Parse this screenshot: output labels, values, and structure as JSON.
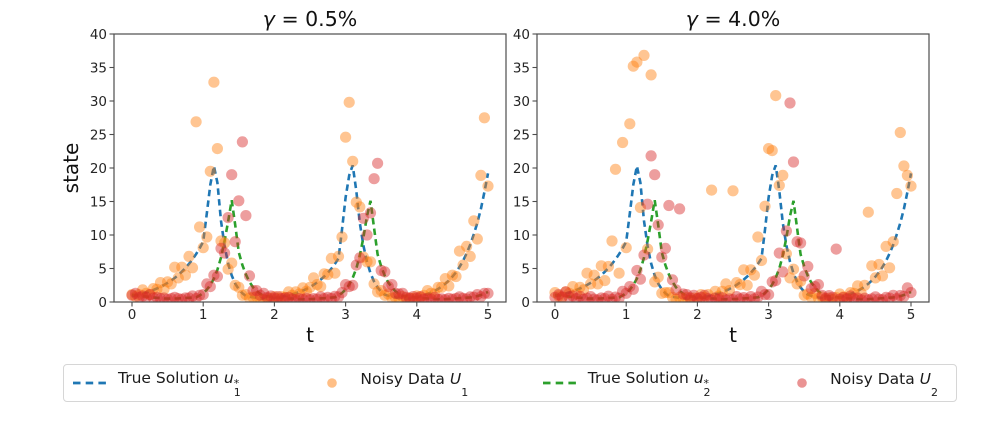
{
  "figure": {
    "background": "#ffffff",
    "spine_color": "#4d4d4d",
    "tick_label_color": "#262626",
    "text_color": "#111111"
  },
  "colors": {
    "u1_line": "#1f77b4",
    "u2_line": "#2ca02c",
    "U1_dot": "#ff7f0e",
    "U2_dot": "#d62728"
  },
  "dot_opacity": 0.45,
  "panels": [
    {
      "title_symbol": "γ",
      "title_rest": " = 0.5%",
      "xlabel": "t",
      "ylabel": "state",
      "x_ticks": [
        "0",
        "1",
        "2",
        "3",
        "4",
        "5"
      ],
      "y_ticks": [
        "0",
        "5",
        "10",
        "15",
        "20",
        "25",
        "30",
        "35",
        "40"
      ]
    },
    {
      "title_symbol": "γ",
      "title_rest": " = 4.0%",
      "xlabel": "t",
      "ylabel": "",
      "x_ticks": [
        "0",
        "1",
        "2",
        "3",
        "4",
        "5"
      ],
      "y_ticks": [
        "0",
        "5",
        "10",
        "15",
        "20",
        "25",
        "30",
        "35",
        "40"
      ]
    }
  ],
  "legend": {
    "items": [
      {
        "type": "dash",
        "color": "#1f77b4",
        "prefix": "True Solution ",
        "var": "u",
        "sub": "1",
        "sup": "*"
      },
      {
        "type": "dot",
        "color": "#ff7f0e",
        "prefix": "Noisy Data ",
        "var": "U",
        "sub": "1",
        "sup": ""
      },
      {
        "type": "dash",
        "color": "#2ca02c",
        "prefix": "True Solution ",
        "var": "u",
        "sub": "2",
        "sup": "*"
      },
      {
        "type": "dot",
        "color": "#d62728",
        "prefix": "Noisy Data ",
        "var": "U",
        "sub": "2",
        "sup": ""
      }
    ]
  },
  "chart_data": {
    "type": "line+scatter",
    "xlabel": "t",
    "ylabel": "state",
    "xlim": [
      -0.25,
      5.25
    ],
    "ylim": [
      0,
      40
    ],
    "t_start": 0,
    "t_step": 0.05,
    "count": 101,
    "true_solutions": {
      "u1": [
        0.9,
        1.01,
        1.13,
        1.27,
        1.43,
        1.6,
        1.8,
        2.01,
        2.26,
        2.54,
        2.85,
        3.19,
        3.58,
        4.02,
        4.51,
        5.06,
        5.68,
        6.37,
        7.15,
        8.02,
        9.0,
        13.2,
        17.5,
        20.3,
        17.8,
        12.1,
        8.35,
        5.77,
        3.97,
        2.74,
        1.89,
        1.3,
        0.9,
        0.78,
        0.68,
        0.6,
        0.53,
        0.48,
        0.45,
        0.52,
        0.59,
        0.67,
        0.77,
        0.88,
        1.0,
        1.15,
        1.31,
        1.5,
        1.71,
        1.96,
        2.23,
        2.55,
        2.92,
        3.34,
        3.81,
        4.36,
        4.98,
        5.69,
        6.5,
        10.8,
        15.6,
        18.9,
        20.4,
        16.6,
        11.8,
        8.43,
        6.01,
        4.28,
        3.05,
        2.17,
        1.54,
        1.1,
        0.92,
        0.79,
        0.68,
        0.6,
        0.52,
        0.45,
        0.53,
        0.62,
        0.73,
        0.87,
        1.02,
        1.2,
        1.41,
        1.66,
        1.96,
        2.31,
        2.72,
        3.2,
        3.77,
        4.44,
        5.23,
        6.15,
        7.25,
        8.54,
        10.1,
        11.8,
        13.9,
        16.4,
        19.2
      ],
      "u2": [
        1.1,
        1.02,
        0.94,
        0.87,
        0.8,
        0.74,
        0.69,
        0.63,
        0.59,
        0.54,
        0.5,
        0.51,
        0.52,
        0.54,
        0.56,
        0.59,
        0.62,
        0.66,
        0.7,
        0.97,
        1.33,
        1.83,
        2.53,
        3.49,
        4.81,
        6.63,
        9.14,
        12.0,
        15.2,
        11.5,
        7.4,
        5.5,
        4.1,
        3.0,
        2.2,
        1.64,
        1.22,
        0.9,
        0.83,
        0.77,
        0.71,
        0.66,
        0.61,
        0.57,
        0.53,
        0.5,
        0.47,
        0.44,
        0.42,
        0.43,
        0.45,
        0.47,
        0.5,
        0.53,
        0.56,
        0.6,
        0.65,
        0.7,
        0.97,
        1.35,
        1.87,
        2.59,
        3.6,
        5.0,
        6.93,
        9.62,
        12.8,
        15.1,
        11.0,
        7.1,
        5.3,
        3.9,
        2.9,
        2.2,
        1.6,
        1.2,
        0.9,
        0.83,
        0.77,
        0.71,
        0.66,
        0.61,
        0.57,
        0.53,
        0.5,
        0.47,
        0.44,
        0.42,
        0.44,
        0.46,
        0.49,
        0.52,
        0.56,
        0.6,
        0.64,
        0.69,
        0.75,
        0.88,
        1.05,
        1.25,
        1.5
      ]
    },
    "panels": [
      {
        "title": "γ = 0.5%",
        "noisy_U1": [
          1.1,
          0.8,
          1.1,
          1.8,
          1.3,
          1.1,
          2.0,
          1.9,
          2.9,
          1.9,
          3.0,
          2.7,
          5.2,
          3.6,
          5.2,
          4.0,
          6.8,
          5.1,
          26.9,
          11.2,
          8.1,
          9.7,
          19.5,
          32.8,
          22.9,
          9.1,
          8.8,
          4.9,
          5.8,
          2.5,
          2.2,
          1.0,
          1.1,
          0.6,
          0.7,
          0.8,
          0.5,
          0.3,
          0.5,
          0.5,
          0.8,
          0.5,
          0.8,
          0.7,
          1.5,
          1.0,
          1.5,
          1.2,
          2.1,
          1.6,
          2.2,
          3.6,
          2.6,
          2.3,
          4.2,
          4.1,
          6.5,
          4.3,
          6.8,
          9.7,
          24.6,
          29.8,
          21.0,
          14.9,
          14.2,
          6.7,
          6.0,
          6.0,
          2.7,
          1.5,
          1.7,
          1.0,
          1.2,
          0.6,
          0.7,
          0.5,
          0.8,
          0.4,
          0.6,
          0.5,
          0.9,
          0.7,
          1.0,
          1.7,
          1.3,
          1.2,
          2.2,
          2.2,
          3.5,
          2.4,
          4.0,
          3.8,
          7.6,
          5.5,
          8.3,
          6.8,
          12.1,
          9.4,
          18.9,
          27.5,
          17.3
        ],
        "noisy_U2": [
          1.0,
          1.3,
          0.7,
          0.9,
          0.7,
          1.1,
          0.6,
          0.7,
          0.5,
          0.6,
          0.4,
          0.5,
          0.7,
          0.5,
          0.4,
          0.6,
          0.6,
          0.9,
          0.5,
          1.0,
          1.1,
          2.7,
          2.3,
          4.0,
          3.8,
          8.0,
          7.3,
          12.6,
          19.0,
          9.0,
          15.1,
          23.9,
          12.9,
          3.9,
          1.7,
          1.7,
          1.0,
          1.3,
          0.7,
          0.9,
          0.6,
          0.8,
          0.5,
          0.6,
          0.7,
          0.45,
          0.33,
          0.5,
          0.4,
          0.56,
          0.34,
          0.5,
          0.43,
          0.77,
          0.5,
          0.7,
          0.52,
          0.84,
          0.78,
          1.4,
          2.6,
          2.3,
          2.5,
          5.5,
          6.6,
          12.5,
          10.0,
          13.3,
          18.4,
          20.7,
          4.7,
          4.5,
          2.3,
          2.6,
          1.3,
          1.2,
          1.3,
          0.7,
          0.54,
          0.8,
          0.6,
          0.8,
          0.43,
          0.56,
          0.43,
          0.68,
          0.4,
          0.48,
          0.35,
          0.55,
          0.39,
          0.52,
          0.78,
          0.54,
          0.45,
          0.76,
          0.71,
          1.1,
          0.79,
          1.3,
          1.3
        ]
      },
      {
        "title": "γ = 4.0%",
        "noisy_U1": [
          1.4,
          0.9,
          0.7,
          1.5,
          1.3,
          2.3,
          1.2,
          2.2,
          1.8,
          4.3,
          2.7,
          4.0,
          2.7,
          5.4,
          3.2,
          5.3,
          9.1,
          19.8,
          4.3,
          23.8,
          8.1,
          26.6,
          35.2,
          35.8,
          14.1,
          36.8,
          7.9,
          33.9,
          3.0,
          3.7,
          1.3,
          1.4,
          1.4,
          0.7,
          0.4,
          0.7,
          0.5,
          0.7,
          0.3,
          0.6,
          0.5,
          1.1,
          0.7,
          1.1,
          16.7,
          1.6,
          0.9,
          1.6,
          2.7,
          1.7,
          16.6,
          2.9,
          2.6,
          4.8,
          2.5,
          4.8,
          4.0,
          9.7,
          6.2,
          14.3,
          22.9,
          22.6,
          30.8,
          17.4,
          18.9,
          7.2,
          3.6,
          4.9,
          2.7,
          3.1,
          1.0,
          1.2,
          0.7,
          1.3,
          0.6,
          0.75,
          0.4,
          0.6,
          0.4,
          0.65,
          1.2,
          0.74,
          0.6,
          1.4,
          1.3,
          2.4,
          1.3,
          2.5,
          13.4,
          5.4,
          3.6,
          5.6,
          3.9,
          8.3,
          5.1,
          9.0,
          16.2,
          25.3,
          20.3,
          18.9,
          17.3
        ],
        "noisy_U2": [
          0.7,
          1.1,
          0.75,
          1.5,
          0.76,
          0.9,
          0.5,
          0.85,
          0.4,
          0.57,
          0.8,
          0.43,
          0.3,
          0.6,
          0.5,
          0.86,
          0.4,
          0.73,
          0.56,
          1.6,
          1.3,
          2.3,
          1.9,
          4.7,
          3.4,
          7.0,
          14.6,
          21.8,
          19.0,
          11.5,
          6.7,
          8.0,
          14.4,
          3.3,
          1.8,
          13.9,
          1.2,
          1.1,
          0.6,
          1.0,
          0.5,
          0.7,
          1.0,
          0.5,
          0.3,
          0.6,
          0.4,
          0.64,
          0.3,
          0.47,
          0.36,
          0.8,
          0.48,
          0.66,
          0.42,
          0.8,
          0.46,
          0.74,
          1.6,
          1.1,
          1.1,
          3.0,
          3.2,
          7.3,
          4.5,
          10.6,
          29.7,
          20.9,
          9.0,
          8.8,
          3.9,
          5.3,
          2.0,
          2.3,
          2.6,
          1.0,
          0.54,
          0.95,
          0.7,
          7.9,
          0.43,
          0.67,
          0.46,
          0.9,
          0.48,
          0.59,
          0.33,
          0.57,
          0.31,
          0.48,
          0.78,
          0.44,
          0.34,
          0.7,
          0.58,
          1.0,
          0.49,
          0.97,
          0.84,
          2.1,
          1.4
        ]
      }
    ],
    "legend_entries": [
      "True Solution u1*",
      "Noisy Data U1",
      "True Solution u2*",
      "Noisy Data U2"
    ],
    "legend_position": "bottom"
  }
}
